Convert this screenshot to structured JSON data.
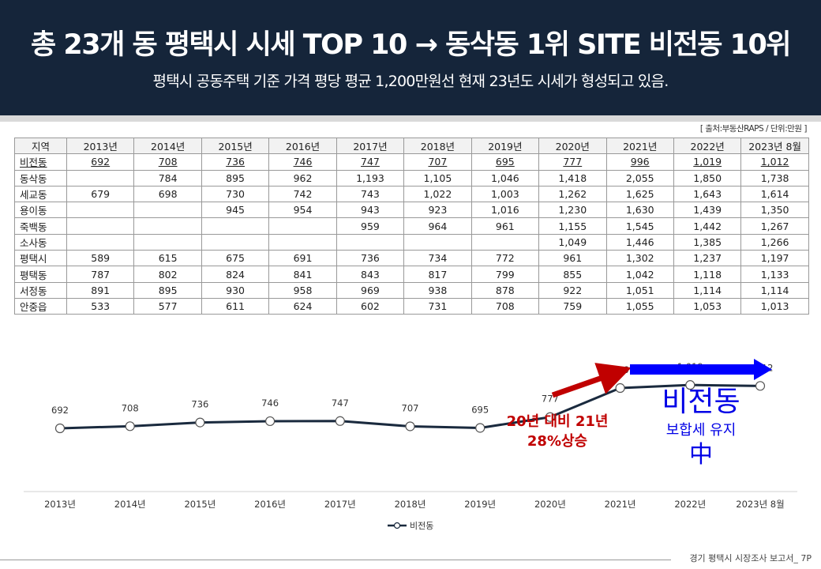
{
  "header": {
    "title": "총 23개 동 평택시 시세 TOP 10 → 동삭동 1위 SITE 비전동 10위",
    "subtitle": "평택시 공동주택 기준 가격 평당 평균 1,200만원선 현재 23년도 시세가 형성되고 있음."
  },
  "source_note": "[ 출처:부동산RAPS / 단위:만원 ]",
  "table": {
    "headers": [
      "지역",
      "2013년",
      "2014년",
      "2015년",
      "2016년",
      "2017년",
      "2018년",
      "2019년",
      "2020년",
      "2021년",
      "2022년",
      "2023년 8월"
    ],
    "rows": [
      [
        "비전동",
        "692",
        "708",
        "736",
        "746",
        "747",
        "707",
        "695",
        "777",
        "996",
        "1,019",
        "1,012"
      ],
      [
        "동삭동",
        "",
        "784",
        "895",
        "962",
        "1,193",
        "1,105",
        "1,046",
        "1,418",
        "2,055",
        "1,850",
        "1,738"
      ],
      [
        "세교동",
        "679",
        "698",
        "730",
        "742",
        "743",
        "1,022",
        "1,003",
        "1,262",
        "1,625",
        "1,643",
        "1,614"
      ],
      [
        "용이동",
        "",
        "",
        "945",
        "954",
        "943",
        "923",
        "1,016",
        "1,230",
        "1,630",
        "1,439",
        "1,350"
      ],
      [
        "죽백동",
        "",
        "",
        "",
        "",
        "959",
        "964",
        "961",
        "1,155",
        "1,545",
        "1,442",
        "1,267"
      ],
      [
        "소사동",
        "",
        "",
        "",
        "",
        "",
        "",
        "",
        "1,049",
        "1,446",
        "1,385",
        "1,266"
      ],
      [
        "평택시",
        "589",
        "615",
        "675",
        "691",
        "736",
        "734",
        "772",
        "961",
        "1,302",
        "1,237",
        "1,197"
      ],
      [
        "평택동",
        "787",
        "802",
        "824",
        "841",
        "843",
        "817",
        "799",
        "855",
        "1,042",
        "1,118",
        "1,133"
      ],
      [
        "서정동",
        "891",
        "895",
        "930",
        "958",
        "969",
        "938",
        "878",
        "922",
        "1,051",
        "1,114",
        "1,114"
      ],
      [
        "안중읍",
        "533",
        "577",
        "611",
        "624",
        "602",
        "731",
        "708",
        "759",
        "1,055",
        "1,053",
        "1,013"
      ]
    ]
  },
  "chart_data": {
    "type": "line",
    "categories": [
      "2013년",
      "2014년",
      "2015년",
      "2016년",
      "2017년",
      "2018년",
      "2019년",
      "2020년",
      "2021년",
      "2022년",
      "2023년 8월"
    ],
    "series": [
      {
        "name": "비전동",
        "values": [
          692,
          708,
          736,
          746,
          747,
          707,
          695,
          777,
          996,
          1019,
          1012
        ]
      }
    ],
    "data_labels": [
      "692",
      "708",
      "736",
      "746",
      "747",
      "707",
      "695",
      "777",
      "996",
      "1,019",
      "1,012"
    ],
    "legend": "bottom",
    "grid": false,
    "colors": {
      "line": "#1a2a3e",
      "marker_fill": "#ffffff",
      "red_arrow": "#c00000",
      "blue_arrow": "#0000ff"
    },
    "annotations": {
      "red_text_line1": "20년 대비 21년",
      "red_text_line2": "28%상승",
      "blue_title": "비전동",
      "blue_line2": "보합세 유지",
      "blue_line3": "中"
    }
  },
  "footer": "경기 평택시 시장조사 보고서_ 7P"
}
